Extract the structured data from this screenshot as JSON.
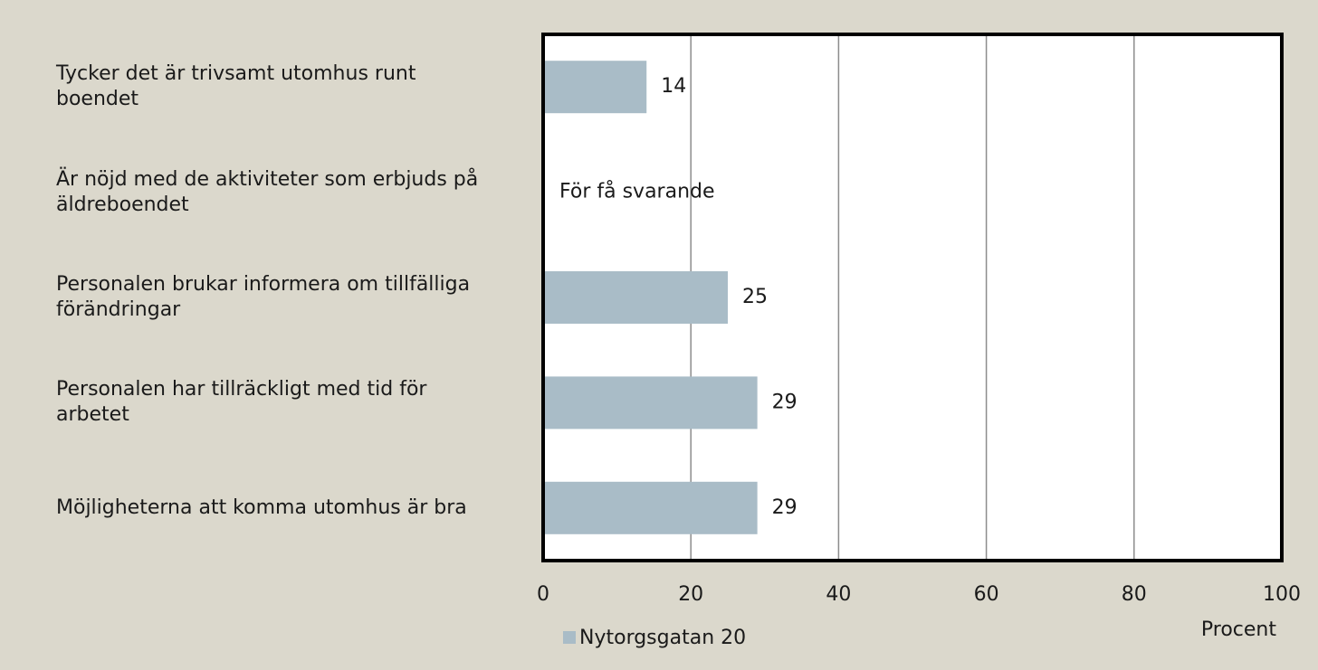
{
  "chart_data": {
    "type": "barh",
    "categories": [
      "Tycker det är trivsamt utomhus runt boendet",
      "Är nöjd med de aktiviteter som erbjuds på äldreboendet",
      "Personalen brukar informera om tillfälliga förändringar",
      "Personalen har tillräckligt med tid för arbetet",
      "Möjligheterna att komma utomhus är bra"
    ],
    "series": [
      {
        "name": "Nytorgsgatan 20",
        "color": "#a9bcc7",
        "values": [
          14,
          null,
          25,
          29,
          29
        ],
        "value_labels": [
          "14",
          "För få svarande",
          "25",
          "29",
          "29"
        ]
      }
    ],
    "xlabel": "Procent",
    "xlim": [
      0,
      100
    ],
    "xticks": [
      0,
      20,
      40,
      60,
      80,
      100
    ],
    "grid": true,
    "legend": "bottom-left"
  }
}
